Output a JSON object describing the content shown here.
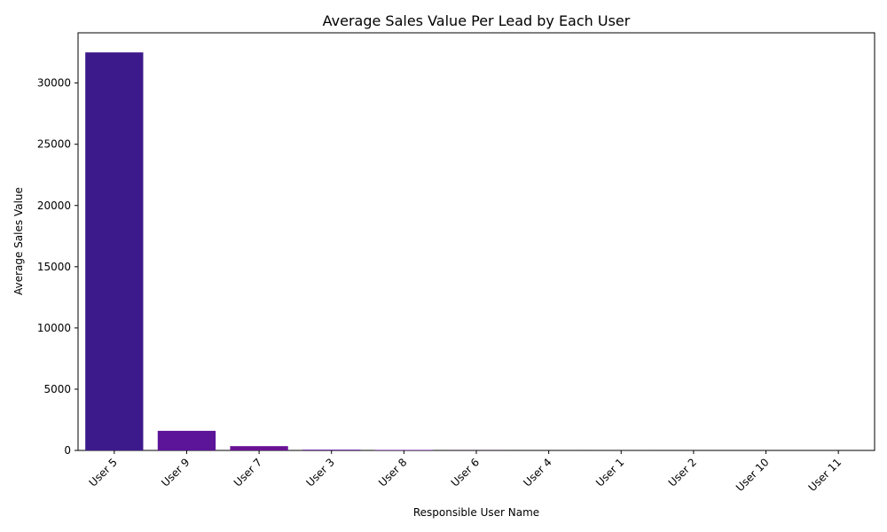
{
  "chart_data": {
    "type": "bar",
    "title": "Average Sales Value Per Lead by Each User",
    "xlabel": "Responsible User Name",
    "ylabel": "Average Sales Value",
    "categories": [
      "User 5",
      "User 9",
      "User 7",
      "User 3",
      "User 8",
      "User 6",
      "User 4",
      "User 1",
      "User 2",
      "User 10",
      "User 11"
    ],
    "values": [
      32500,
      1600,
      350,
      60,
      40,
      5,
      3,
      2,
      1,
      1,
      0
    ],
    "colors": [
      "#3d1a8c",
      "#5c1498",
      "#6a1296",
      "#5a16a0",
      "#6a1296",
      "#6a1296",
      "#6a1296",
      "#6a1296",
      "#6a1296",
      "#6a1296",
      "#6a1296"
    ],
    "ylim": [
      0,
      34100
    ],
    "yticks": [
      0,
      5000,
      10000,
      15000,
      20000,
      25000,
      30000
    ],
    "grid": false,
    "legend": "none"
  }
}
